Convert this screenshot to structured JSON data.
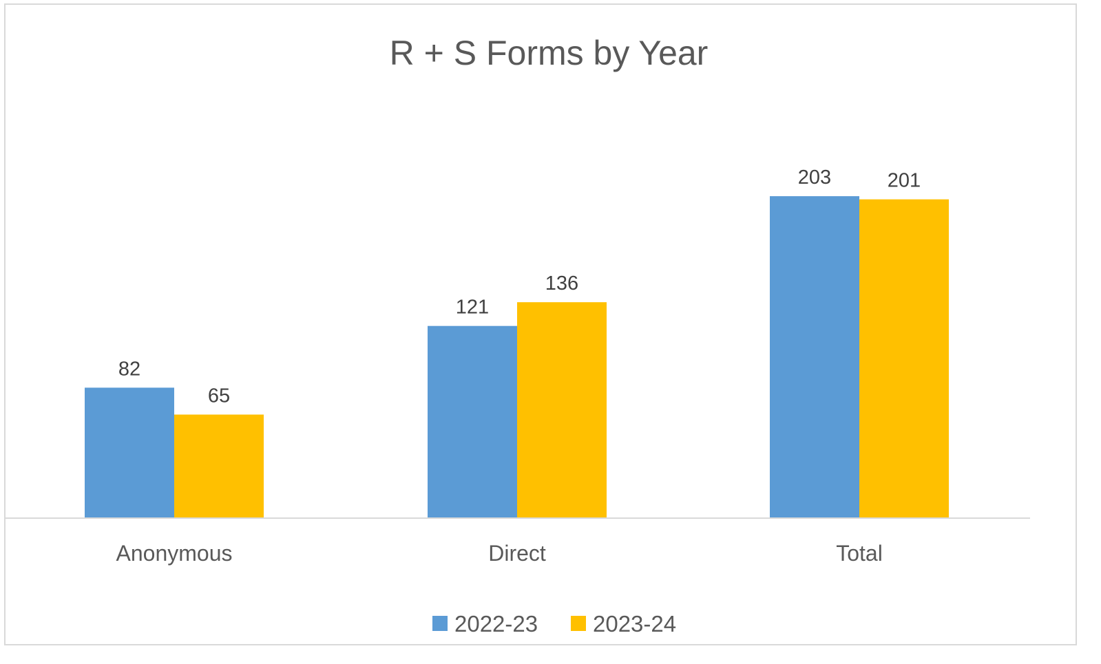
{
  "chart_data": {
    "type": "bar",
    "title": "R + S Forms by Year",
    "xlabel": "",
    "ylabel": "",
    "categories": [
      "Anonymous",
      "Direct",
      "Total"
    ],
    "series": [
      {
        "name": "2022-23",
        "values": [
          82,
          121,
          203
        ],
        "color": "#5B9BD5"
      },
      {
        "name": "2023-24",
        "values": [
          65,
          136,
          201
        ],
        "color": "#FFC000"
      }
    ],
    "ylim": [
      0,
      225
    ],
    "grid": false,
    "data_labels": true,
    "legend_position": "bottom"
  }
}
